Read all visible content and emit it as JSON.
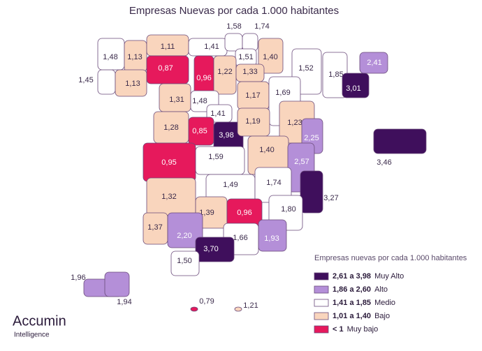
{
  "title": "Empresas Nuevas por cada 1.000 habitantes",
  "legend": {
    "title": "Empresas nuevas por cada 1.000 habitantes",
    "items": [
      {
        "range": "2,61 a 3,98",
        "level": "Muy Alto",
        "min": 2.61,
        "color": "#3f0f5c"
      },
      {
        "range": "1,86 a 2,60",
        "level": "Alto",
        "min": 1.86,
        "color": "#b48fd8"
      },
      {
        "range": "1,41 a 1,85",
        "level": "Medio",
        "min": 1.41,
        "color": "#ffffff"
      },
      {
        "range": "1,01 a 1,40",
        "level": "Bajo",
        "min": 1.01,
        "color": "#f9d5bd"
      },
      {
        "range": "< 1",
        "level": "Muy bajo",
        "color": "#e6195c"
      }
    ]
  },
  "regions": [
    {
      "value": 1.45,
      "label": "1,45"
    },
    {
      "value": 1.48,
      "label": "1,48"
    },
    {
      "value": 1.13,
      "label": "1,13"
    },
    {
      "value": 1.13,
      "label": "1,13"
    },
    {
      "value": 1.11,
      "label": "1,11"
    },
    {
      "value": 1.41,
      "label": "1,41"
    },
    {
      "value": 1.58,
      "label": "1,58"
    },
    {
      "value": 1.74,
      "label": "1,74"
    },
    {
      "value": 1.51,
      "label": "1,51"
    },
    {
      "value": 1.4,
      "label": "1,40"
    },
    {
      "value": 0.87,
      "label": "0,87"
    },
    {
      "value": 0.96,
      "label": "0,96"
    },
    {
      "value": 1.22,
      "label": "1,22"
    },
    {
      "value": 1.33,
      "label": "1,33"
    },
    {
      "value": 1.52,
      "label": "1,52"
    },
    {
      "value": 1.85,
      "label": "1,85"
    },
    {
      "value": 2.41,
      "label": "2,41"
    },
    {
      "value": 3.01,
      "label": "3,01"
    },
    {
      "value": 1.31,
      "label": "1,31"
    },
    {
      "value": 1.48,
      "label": "1,48"
    },
    {
      "value": 1.17,
      "label": "1,17"
    },
    {
      "value": 1.69,
      "label": "1,69"
    },
    {
      "value": 1.41,
      "label": "1,41"
    },
    {
      "value": 1.28,
      "label": "1,28"
    },
    {
      "value": 0.85,
      "label": "0,85"
    },
    {
      "value": 3.98,
      "label": "3,98"
    },
    {
      "value": 1.19,
      "label": "1,19"
    },
    {
      "value": 1.23,
      "label": "1,23"
    },
    {
      "value": 2.25,
      "label": "2,25"
    },
    {
      "value": 0.95,
      "label": "0,95"
    },
    {
      "value": 1.59,
      "label": "1,59"
    },
    {
      "value": 1.4,
      "label": "1,40"
    },
    {
      "value": 2.57,
      "label": "2,57"
    },
    {
      "value": 1.49,
      "label": "1,49"
    },
    {
      "value": 1.74,
      "label": "1,74"
    },
    {
      "value": 3.27,
      "label": "3,27"
    },
    {
      "value": 1.32,
      "label": "1,32"
    },
    {
      "value": 1.39,
      "label": "1,39"
    },
    {
      "value": 0.96,
      "label": "0,96"
    },
    {
      "value": 1.8,
      "label": "1,80"
    },
    {
      "value": 1.37,
      "label": "1,37"
    },
    {
      "value": 2.2,
      "label": "2,20"
    },
    {
      "value": 1.66,
      "label": "1,66"
    },
    {
      "value": 1.93,
      "label": "1,93"
    },
    {
      "value": 3.7,
      "label": "3,70"
    },
    {
      "value": 1.5,
      "label": "1,50"
    },
    {
      "value": 3.46,
      "label": "3,46"
    },
    {
      "value": 1.96,
      "label": "1,96"
    },
    {
      "value": 1.94,
      "label": "1,94"
    },
    {
      "value": 0.79,
      "label": "0,79"
    },
    {
      "value": 1.21,
      "label": "1,21"
    }
  ],
  "logo": {
    "name": "Accumin",
    "tagline": "Intelligence"
  }
}
